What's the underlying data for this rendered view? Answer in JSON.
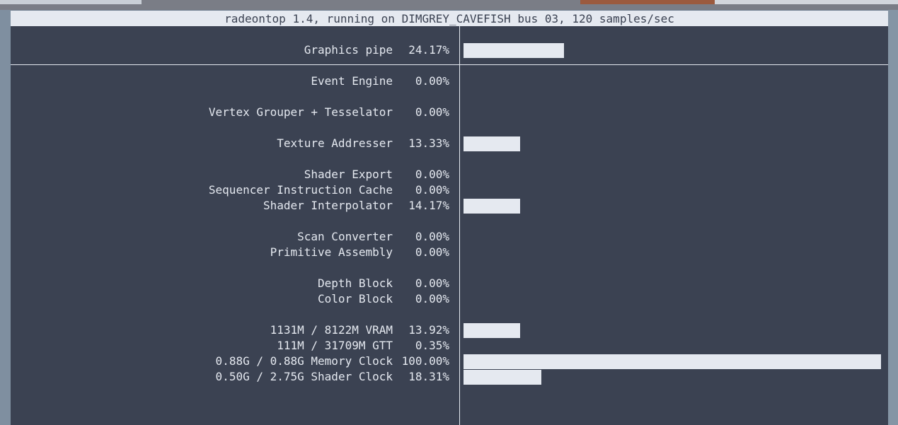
{
  "title": "radeontop 1.4, running on DIMGREY_CAVEFISH bus 03, 120 samples/sec",
  "colors": {
    "bg": "#3b4252",
    "fg": "#e5e9f0"
  },
  "bar_scale_max_percent": 100,
  "rows": [
    {
      "label": "Graphics pipe",
      "pct": "24.17%",
      "fill": 24
    },
    {
      "label": "Event Engine",
      "pct": "0.00%",
      "fill": 0
    },
    {
      "label": "Vertex Grouper + Tesselator",
      "pct": "0.00%",
      "fill": 0
    },
    {
      "label": "Texture Addresser",
      "pct": "13.33%",
      "fill": 13.6
    },
    {
      "label": "Shader Export",
      "pct": "0.00%",
      "fill": 0
    },
    {
      "label": "Sequencer Instruction Cache",
      "pct": "0.00%",
      "fill": 0
    },
    {
      "label": "Shader Interpolator",
      "pct": "14.17%",
      "fill": 13.6
    },
    {
      "label": "Scan Converter",
      "pct": "0.00%",
      "fill": 0
    },
    {
      "label": "Primitive Assembly",
      "pct": "0.00%",
      "fill": 0
    },
    {
      "label": "Depth Block",
      "pct": "0.00%",
      "fill": 0
    },
    {
      "label": "Color Block",
      "pct": "0.00%",
      "fill": 0
    },
    {
      "label": "1131M / 8122M VRAM",
      "pct": "13.92%",
      "fill": 13.6
    },
    {
      "label": "111M / 31709M GTT",
      "pct": "0.35%",
      "fill": 0
    },
    {
      "label": "0.88G / 0.88G Memory Clock",
      "pct": "100.00%",
      "fill": 100
    },
    {
      "label": "0.50G / 2.75G Shader Clock",
      "pct": "18.31%",
      "fill": 18.6
    }
  ]
}
